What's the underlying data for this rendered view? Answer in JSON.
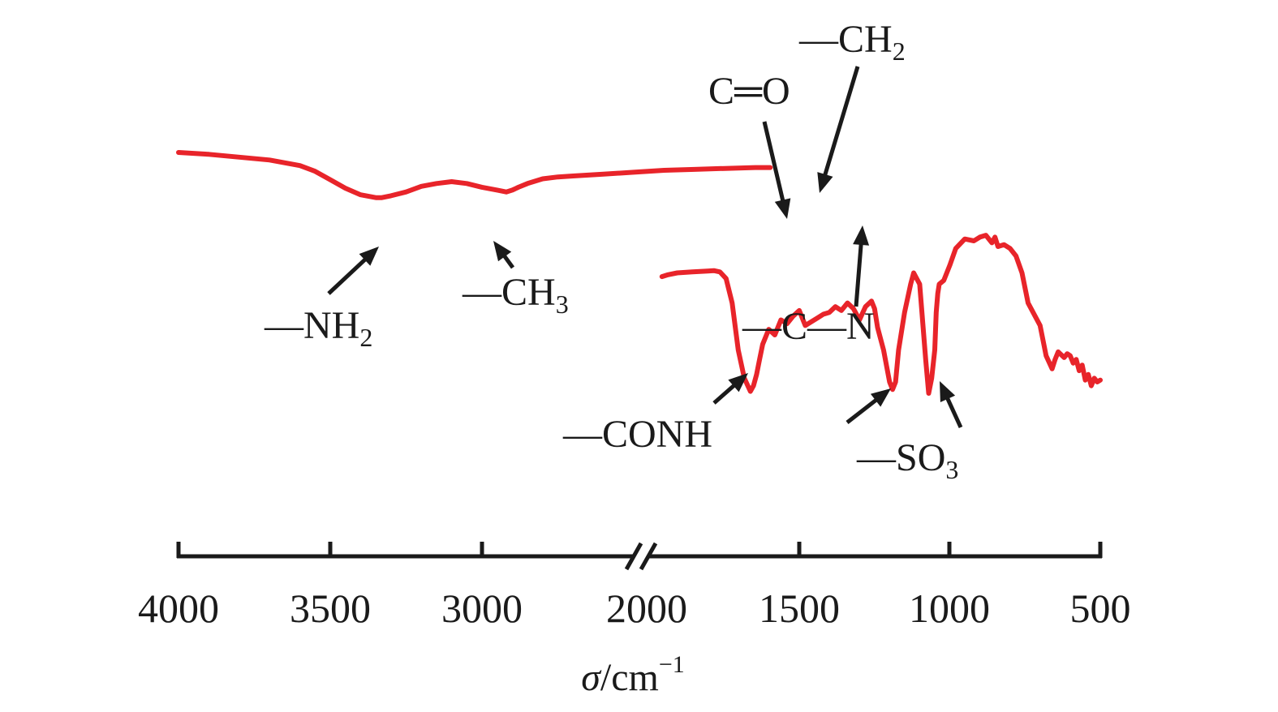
{
  "chart_data": {
    "type": "line",
    "title": "",
    "xlabel": {
      "symbol": "σ",
      "unit": "/cm",
      "exp": "−1"
    },
    "ylabel": "",
    "x_axis_broken": true,
    "xlim_left": [
      4000,
      2050
    ],
    "xlim_right": [
      1950,
      500
    ],
    "ticks": [
      "4000",
      "3500",
      "3000",
      "2000",
      "1500",
      "1000",
      "500"
    ],
    "series": [
      {
        "name": "",
        "color": "#e8242a",
        "segment_high": {
          "x": [
            4000,
            3900,
            3800,
            3700,
            3600,
            3550,
            3500,
            3450,
            3400,
            3350,
            3330,
            3300,
            3250,
            3200,
            3150,
            3100,
            3050,
            3000,
            2950,
            2920,
            2900,
            2880,
            2850,
            2800,
            2750,
            2700,
            2600,
            2500,
            2400,
            2300,
            2200,
            2100,
            2050
          ],
          "y": [
            1.0,
            0.99,
            0.975,
            0.96,
            0.93,
            0.9,
            0.855,
            0.81,
            0.775,
            0.76,
            0.76,
            0.77,
            0.79,
            0.82,
            0.835,
            0.845,
            0.835,
            0.815,
            0.8,
            0.79,
            0.8,
            0.815,
            0.835,
            0.86,
            0.87,
            0.875,
            0.885,
            0.895,
            0.905,
            0.91,
            0.915,
            0.92,
            0.92
          ]
        },
        "segment_low": {
          "x": [
            1950,
            1930,
            1900,
            1850,
            1800,
            1780,
            1760,
            1740,
            1720,
            1700,
            1680,
            1660,
            1650,
            1640,
            1630,
            1620,
            1600,
            1580,
            1560,
            1540,
            1520,
            1500,
            1480,
            1460,
            1440,
            1420,
            1400,
            1380,
            1360,
            1340,
            1320,
            1300,
            1280,
            1260,
            1250,
            1240,
            1220,
            1200,
            1190,
            1180,
            1170,
            1150,
            1130,
            1120,
            1100,
            1080,
            1070,
            1060,
            1050,
            1045,
            1040,
            1035,
            1020,
            1000,
            980,
            950,
            920,
            900,
            880,
            860,
            850,
            840,
            820,
            800,
            780,
            760,
            740,
            700,
            680,
            660,
            650,
            640,
            620,
            610,
            600,
            590,
            580,
            570,
            560,
            550,
            540,
            530,
            520,
            510,
            500
          ],
          "y": [
            0.34,
            0.35,
            0.36,
            0.365,
            0.37,
            0.372,
            0.365,
            0.33,
            0.2,
            -0.05,
            -0.2,
            -0.27,
            -0.24,
            -0.18,
            -0.1,
            -0.02,
            0.06,
            0.03,
            0.11,
            0.09,
            0.13,
            0.16,
            0.08,
            0.1,
            0.12,
            0.14,
            0.15,
            0.18,
            0.16,
            0.2,
            0.17,
            0.11,
            0.18,
            0.21,
            0.17,
            0.07,
            -0.05,
            -0.22,
            -0.26,
            -0.22,
            -0.05,
            0.15,
            0.3,
            0.36,
            0.3,
            -0.1,
            -0.28,
            -0.2,
            -0.05,
            0.15,
            0.25,
            0.3,
            0.32,
            0.4,
            0.49,
            0.54,
            0.53,
            0.55,
            0.56,
            0.52,
            0.55,
            0.5,
            0.51,
            0.49,
            0.45,
            0.36,
            0.2,
            0.08,
            -0.08,
            -0.15,
            -0.1,
            -0.06,
            -0.09,
            -0.07,
            -0.08,
            -0.12,
            -0.1,
            -0.16,
            -0.13,
            -0.21,
            -0.18,
            -0.24,
            -0.2,
            -0.22,
            -0.21
          ]
        }
      }
    ],
    "annotations": [
      {
        "label": "—NH",
        "sub": "2",
        "x": 3330
      },
      {
        "label": "—CH",
        "sub": "3",
        "x": 2880
      },
      {
        "label": "C═O",
        "sub": "",
        "x": 1560
      },
      {
        "label": "—CH",
        "sub": "2",
        "x": 1440
      },
      {
        "label": "—C—N",
        "sub": "",
        "x": 1270
      },
      {
        "label": "—CONH",
        "sub": "",
        "x": 1660
      },
      {
        "label": "—SO",
        "sub": "3",
        "x": 1190
      }
    ]
  }
}
